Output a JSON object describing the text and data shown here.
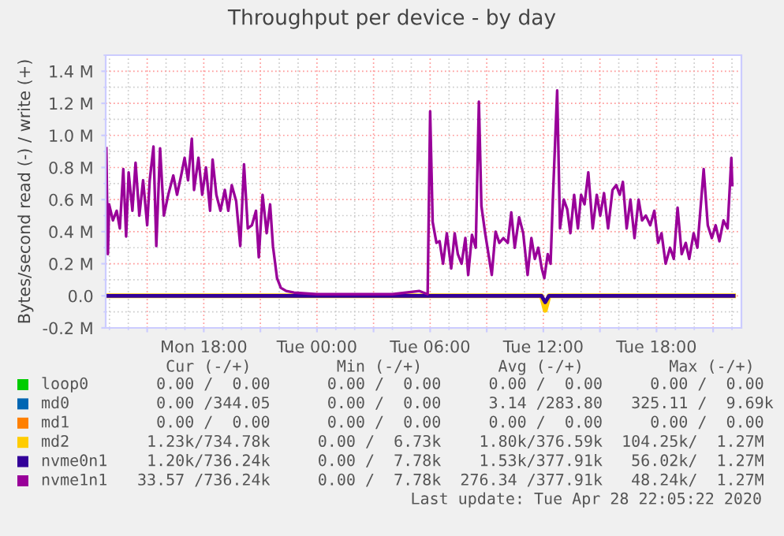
{
  "chart_data": {
    "type": "line",
    "title": "Throughput per device - by day",
    "ylabel": "Bytes/second read (-) / write (+)",
    "xlim": [
      "2020-04-27T12:48",
      "2020-04-28T22:30"
    ],
    "ylim": [
      -0.2,
      1.5
    ],
    "xticks": [
      {
        "value": "2020-04-27T15:00",
        "label": null
      },
      {
        "value": "2020-04-27T18:00",
        "label": "Mon 18:00"
      },
      {
        "value": "2020-04-27T21:00",
        "label": null
      },
      {
        "value": "2020-04-28T00:00",
        "label": "Tue 00:00"
      },
      {
        "value": "2020-04-28T03:00",
        "label": null
      },
      {
        "value": "2020-04-28T06:00",
        "label": "Tue 06:00"
      },
      {
        "value": "2020-04-28T09:00",
        "label": null
      },
      {
        "value": "2020-04-28T12:00",
        "label": "Tue 12:00"
      },
      {
        "value": "2020-04-28T15:00",
        "label": null
      },
      {
        "value": "2020-04-28T18:00",
        "label": "Tue 18:00"
      },
      {
        "value": "2020-04-28T21:00",
        "label": null
      }
    ],
    "yticks": [
      {
        "value": -0.2,
        "label": "-0.2 M"
      },
      {
        "value": 0,
        "label": "0.0"
      },
      {
        "value": 0.2,
        "label": "0.2 M"
      },
      {
        "value": 0.4,
        "label": "0.4 M"
      },
      {
        "value": 0.6,
        "label": "0.6 M"
      },
      {
        "value": 0.8,
        "label": "0.8 M"
      },
      {
        "value": 1.0,
        "label": "1.0 M"
      },
      {
        "value": 1.2,
        "label": "1.2 M"
      },
      {
        "value": 1.4,
        "label": "1.4 M"
      }
    ],
    "grid": true,
    "legend": "bottom",
    "series": [
      {
        "name": "loop0",
        "color": "#00cc00"
      },
      {
        "name": "md0",
        "color": "#0066b3"
      },
      {
        "name": "md1",
        "color": "#ff8000"
      },
      {
        "name": "md2",
        "color": "#ffcc00",
        "x": [
          "2020-04-27T12:48",
          "2020-04-28T11:54",
          "2020-04-28T12:06",
          "2020-04-28T12:18",
          "2020-04-28T22:05"
        ],
        "values": [
          0,
          0,
          -0.09,
          0,
          0
        ]
      },
      {
        "name": "nvme0n1",
        "color": "#330099",
        "x": [
          "2020-04-27T12:48",
          "2020-04-28T11:54",
          "2020-04-28T12:06",
          "2020-04-28T12:18",
          "2020-04-28T22:05"
        ],
        "values": [
          0,
          0,
          -0.04,
          0,
          0
        ]
      },
      {
        "name": "nvme1n1",
        "color": "#990099",
        "x": [
          "2020-04-27T12:50",
          "2020-04-27T12:55",
          "2020-04-27T12:59",
          "2020-04-27T13:11",
          "2020-04-27T13:23",
          "2020-04-27T13:33",
          "2020-04-27T13:44",
          "2020-04-27T13:53",
          "2020-04-27T14:01",
          "2020-04-27T14:13",
          "2020-04-27T14:23",
          "2020-04-27T14:35",
          "2020-04-27T14:47",
          "2020-04-27T15:00",
          "2020-04-27T15:08",
          "2020-04-27T15:20",
          "2020-04-27T15:29",
          "2020-04-27T15:41",
          "2020-04-27T15:53",
          "2020-04-27T16:07",
          "2020-04-27T16:23",
          "2020-04-27T16:35",
          "2020-04-27T16:48",
          "2020-04-27T16:59",
          "2020-04-27T17:10",
          "2020-04-27T17:22",
          "2020-04-27T17:29",
          "2020-04-27T17:43",
          "2020-04-27T17:55",
          "2020-04-27T18:07",
          "2020-04-27T18:20",
          "2020-04-27T18:28",
          "2020-04-27T18:40",
          "2020-04-27T18:53",
          "2020-04-27T19:07",
          "2020-04-27T19:18",
          "2020-04-27T19:29",
          "2020-04-27T19:43",
          "2020-04-27T19:56",
          "2020-04-27T20:08",
          "2020-04-27T20:20",
          "2020-04-27T20:33",
          "2020-04-27T20:46",
          "2020-04-27T20:55",
          "2020-04-27T21:07",
          "2020-04-27T21:20",
          "2020-04-27T21:31",
          "2020-04-27T21:40",
          "2020-04-27T21:53",
          "2020-04-27T22:05",
          "2020-04-27T22:22",
          "2020-04-27T22:47",
          "2020-04-28T00:00",
          "2020-04-28T04:00",
          "2020-04-28T05:26",
          "2020-04-28T05:52",
          "2020-04-28T06:00",
          "2020-04-28T06:08",
          "2020-04-28T06:20",
          "2020-04-28T06:30",
          "2020-04-28T06:41",
          "2020-04-28T06:53",
          "2020-04-28T07:07",
          "2020-04-28T07:18",
          "2020-04-28T07:28",
          "2020-04-28T07:40",
          "2020-04-28T07:52",
          "2020-04-28T08:01",
          "2020-04-28T08:13",
          "2020-04-28T08:25",
          "2020-04-28T08:35",
          "2020-04-28T08:43",
          "2020-04-28T08:55",
          "2020-04-28T09:16",
          "2020-04-28T09:28",
          "2020-04-28T09:40",
          "2020-04-28T09:53",
          "2020-04-28T10:07",
          "2020-04-28T10:18",
          "2020-04-28T10:29",
          "2020-04-28T10:43",
          "2020-04-28T10:56",
          "2020-04-28T11:10",
          "2020-04-28T11:22",
          "2020-04-28T11:33",
          "2020-04-28T11:44",
          "2020-04-28T11:55",
          "2020-04-28T12:03",
          "2020-04-28T12:14",
          "2020-04-28T12:23",
          "2020-04-28T12:31",
          "2020-04-28T12:44",
          "2020-04-28T12:53",
          "2020-04-28T13:05",
          "2020-04-28T13:16",
          "2020-04-28T13:26",
          "2020-04-28T13:38",
          "2020-04-28T13:50",
          "2020-04-28T14:00",
          "2020-04-28T14:11",
          "2020-04-28T14:23",
          "2020-04-28T14:37",
          "2020-04-28T14:50",
          "2020-04-28T15:01",
          "2020-04-28T15:13",
          "2020-04-28T15:26",
          "2020-04-28T15:40",
          "2020-04-28T15:52",
          "2020-04-28T16:03",
          "2020-04-28T16:13",
          "2020-04-28T16:25",
          "2020-04-28T16:37",
          "2020-04-28T16:50",
          "2020-04-28T17:03",
          "2020-04-28T17:14",
          "2020-04-28T17:26",
          "2020-04-28T17:40",
          "2020-04-28T17:53",
          "2020-04-28T18:05",
          "2020-04-28T18:16",
          "2020-04-28T18:29",
          "2020-04-28T18:43",
          "2020-04-28T18:55",
          "2020-04-28T19:07",
          "2020-04-28T19:20",
          "2020-04-28T19:33",
          "2020-04-28T19:44",
          "2020-04-28T19:58",
          "2020-04-28T20:10",
          "2020-04-28T20:30",
          "2020-04-28T20:43",
          "2020-04-28T20:56",
          "2020-04-28T21:08",
          "2020-04-28T21:20",
          "2020-04-28T21:33",
          "2020-04-28T21:46",
          "2020-04-28T21:58",
          "2020-04-28T22:01"
        ],
        "values": [
          0.92,
          0.26,
          0.57,
          0.47,
          0.53,
          0.42,
          0.79,
          0.37,
          0.77,
          0.53,
          0.83,
          0.5,
          0.72,
          0.44,
          0.72,
          0.93,
          0.31,
          0.92,
          0.5,
          0.63,
          0.75,
          0.63,
          0.75,
          0.86,
          0.72,
          0.98,
          0.66,
          0.86,
          0.63,
          0.8,
          0.53,
          0.85,
          0.63,
          0.53,
          0.66,
          0.53,
          0.69,
          0.59,
          0.31,
          0.82,
          0.42,
          0.44,
          0.53,
          0.24,
          0.63,
          0.39,
          0.57,
          0.31,
          0.11,
          0.05,
          0.03,
          0.02,
          0.01,
          0.01,
          0.03,
          0.01,
          1.15,
          0.46,
          0.33,
          0.34,
          0.2,
          0.39,
          0.17,
          0.39,
          0.26,
          0.2,
          0.36,
          0.13,
          0.38,
          0.3,
          1.21,
          0.56,
          0.39,
          0.13,
          0.4,
          0.33,
          0.36,
          0.33,
          0.52,
          0.3,
          0.49,
          0.39,
          0.13,
          0.36,
          0.23,
          0.3,
          0.17,
          0.11,
          0.26,
          0.2,
          0.64,
          1.28,
          0.42,
          0.6,
          0.54,
          0.39,
          0.63,
          0.42,
          0.63,
          0.57,
          0.77,
          0.42,
          0.63,
          0.5,
          0.64,
          0.42,
          0.66,
          0.69,
          0.63,
          0.71,
          0.42,
          0.6,
          0.36,
          0.6,
          0.47,
          0.5,
          0.44,
          0.53,
          0.33,
          0.39,
          0.2,
          0.3,
          0.23,
          0.55,
          0.26,
          0.33,
          0.23,
          0.39,
          0.3,
          0.79,
          0.44,
          0.36,
          0.44,
          0.34,
          0.47,
          0.42,
          0.86,
          0.69
        ]
      }
    ],
    "annotations": [
      "   Cur (-/+)         Min (-/+)        Avg (-/+)         Max (-/+)",
      "  0.00 /  0.00      0.00 /  0.00     0.00 /  0.00     0.00 /  0.00",
      "  0.00 /344.05      0.00 /  0.00     3.14 /283.80   325.11 /  9.69k",
      "  0.00 /  0.00      0.00 /  0.00     0.00 /  0.00     0.00 /  0.00",
      " 1.23k/734.78k     0.00 /  6.73k    1.80k/376.59k  104.25k/  1.27M",
      " 1.20k/736.24k     0.00 /  7.78k    1.53k/377.91k   56.02k/  1.27M",
      "33.57 /736.24k     0.00 /  7.78k  276.34 /377.91k   48.24k/  1.27M",
      "Last update: Tue Apr 28 22:05:22 2020"
    ]
  }
}
